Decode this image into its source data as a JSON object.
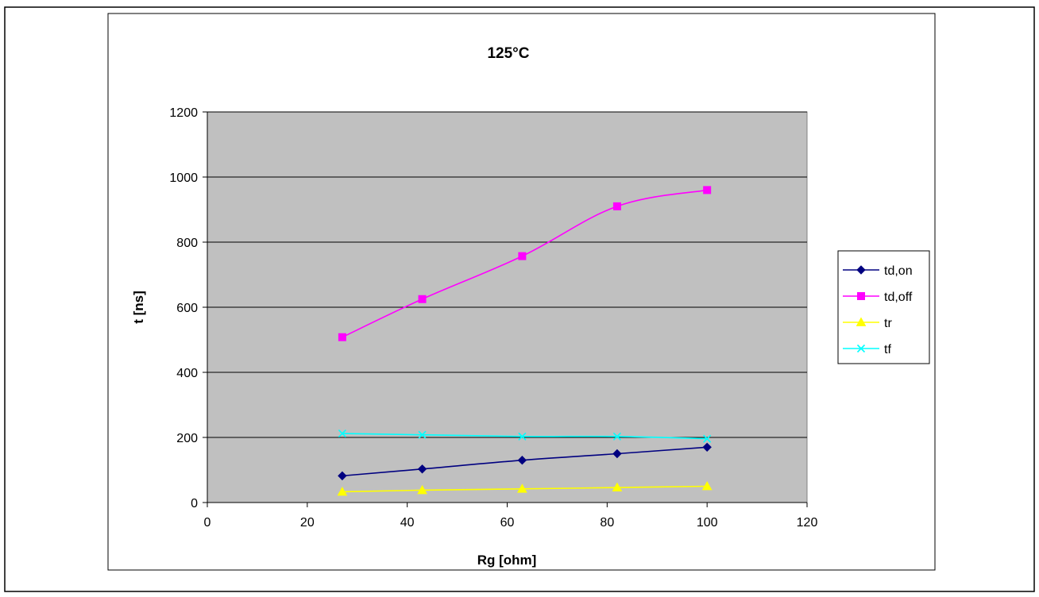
{
  "chart_data": {
    "type": "line",
    "title": "125°C",
    "xlabel": "Rg [ohm]",
    "ylabel": "t [ns]",
    "xlim": [
      0,
      120
    ],
    "ylim": [
      0,
      1200
    ],
    "xticks": [
      0,
      20,
      40,
      60,
      80,
      100,
      120
    ],
    "yticks": [
      0,
      200,
      400,
      600,
      800,
      1000,
      1200
    ],
    "grid": "horizontal",
    "plot_background": "#c0c0c0",
    "legend_position": "right",
    "x": [
      27,
      43,
      63,
      82,
      100
    ],
    "series": [
      {
        "name": "td,on",
        "color": "#000080",
        "marker": "diamond",
        "values": [
          82,
          103,
          130,
          150,
          170
        ]
      },
      {
        "name": "td,off",
        "color": "#ff00ff",
        "marker": "square",
        "values": [
          508,
          625,
          757,
          910,
          960
        ]
      },
      {
        "name": "tr",
        "color": "#ffff00",
        "marker": "triangle",
        "values": [
          33,
          38,
          42,
          46,
          50
        ]
      },
      {
        "name": "tf",
        "color": "#00ffff",
        "marker": "x",
        "values": [
          212,
          208,
          203,
          203,
          196
        ]
      }
    ]
  }
}
